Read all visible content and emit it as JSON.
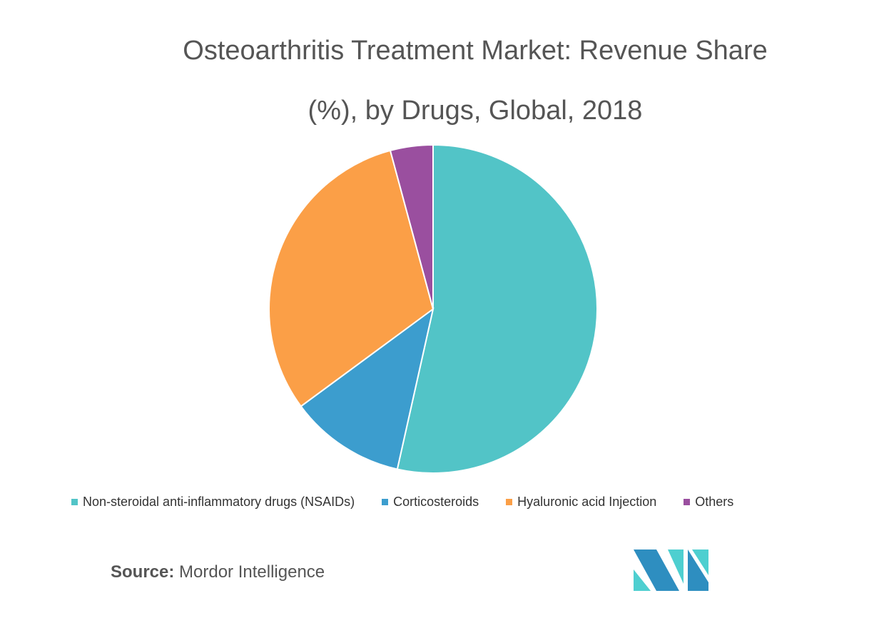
{
  "chart_data": {
    "type": "pie",
    "title": "Osteoarthritis Treatment Market: Revenue Share (%), by Drugs, Global, 2018",
    "title_lines": [
      "Osteoarthritis Treatment Market: Revenue Share",
      "(%), by Drugs, Global, 2018"
    ],
    "start_angle": "12 o'clock",
    "direction": "clockwise",
    "legend_position": "bottom",
    "slices": [
      {
        "label": "Non-steroidal anti-inflammatory drugs (NSAIDs)",
        "value": 53.5,
        "color": "#52c4c7"
      },
      {
        "label": "Corticosteroids",
        "value": 11.4,
        "color": "#3c9dce"
      },
      {
        "label": "Hyaluronic acid Injection",
        "value": 30.9,
        "color": "#fb9f47"
      },
      {
        "label": "Others",
        "value": 4.2,
        "color": "#9a4f9f"
      }
    ]
  },
  "source": {
    "label": "Source:",
    "text": "Mordor Intelligence"
  },
  "logo": {
    "colors": [
      "#2e8ec0",
      "#4ecfd0"
    ]
  }
}
